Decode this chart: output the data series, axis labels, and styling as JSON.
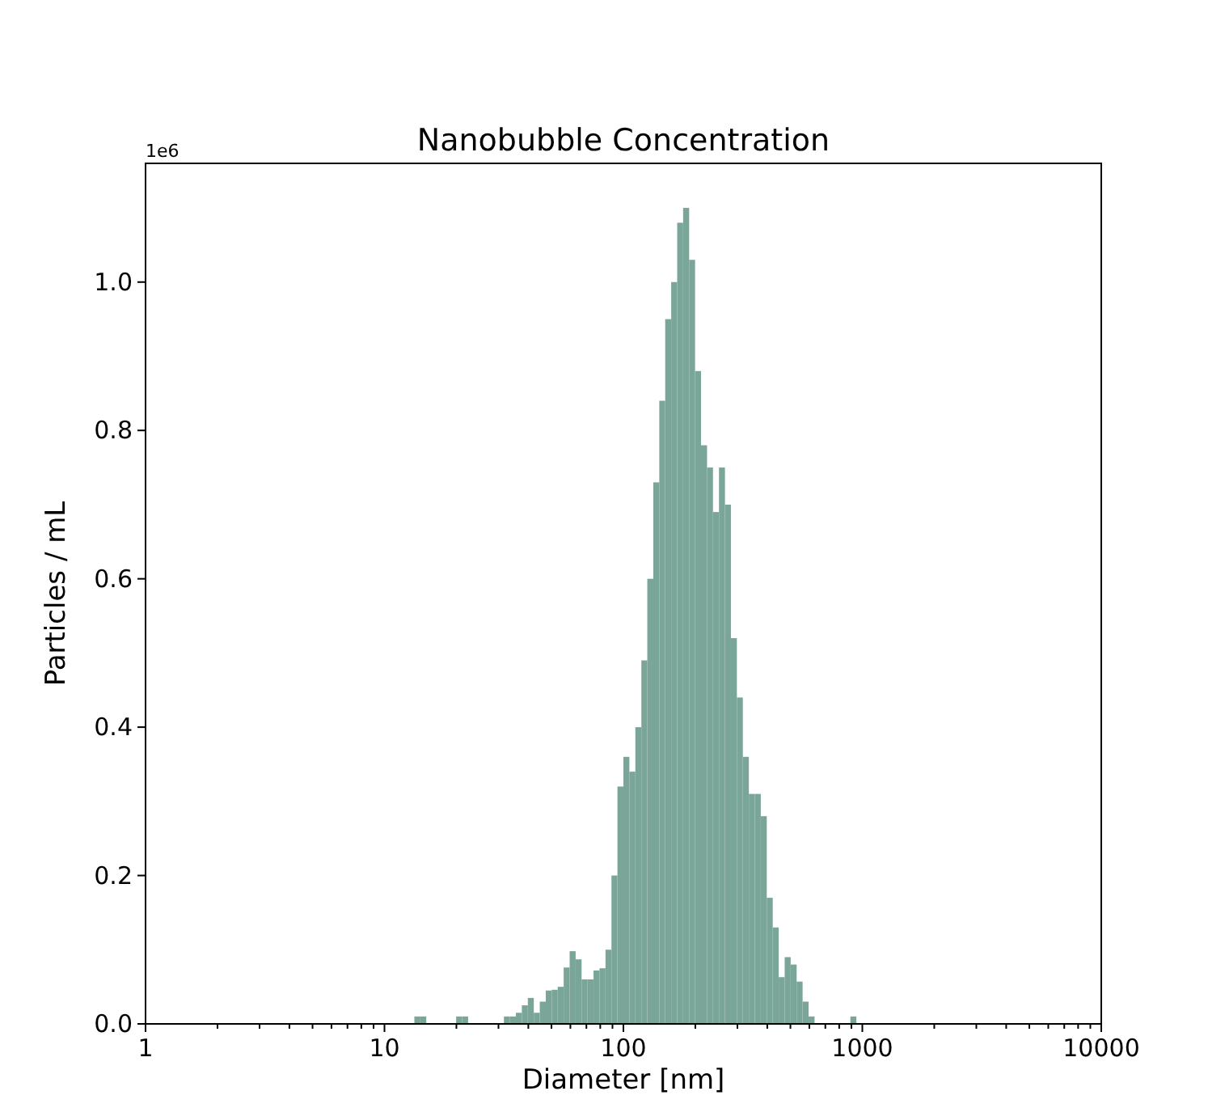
{
  "chart_data": {
    "type": "histogram",
    "title": "Nanobubble Concentration",
    "xlabel": "Diameter [nm]",
    "ylabel": "Particles / mL",
    "annotations": [
      "1e6"
    ],
    "color": "#7aa69a",
    "log": "x",
    "grid": false,
    "bins": [
      12.59,
      13.34,
      14.13,
      14.96,
      15.85,
      16.79,
      17.78,
      18.84,
      19.95,
      21.13,
      22.39,
      23.71,
      25.12,
      26.61,
      28.18,
      29.85,
      31.62,
      33.5,
      35.48,
      37.58,
      39.81,
      42.17,
      44.67,
      47.32,
      50.12,
      53.09,
      56.23,
      59.57,
      63.1,
      66.83,
      70.79,
      74.99,
      79.43,
      84.14,
      89.13,
      94.41,
      100,
      105.9,
      112.2,
      118.9,
      125.9,
      133.4,
      141.3,
      149.6,
      158.5,
      167.9,
      177.8,
      188.4,
      199.5,
      211.3,
      223.9,
      237.1,
      251.2,
      266.1,
      281.8,
      298.5,
      316.2,
      335,
      354.8,
      375.8,
      398.1,
      421.7,
      446.7,
      473.2,
      501.2,
      530.9,
      562.3,
      595.7,
      631,
      668.3,
      707.9,
      749.9,
      794.3,
      841.4,
      891.3,
      944.1,
      1000
    ],
    "values": [
      0,
      0.01,
      0.01,
      0,
      0,
      0,
      0,
      0,
      0.01,
      0.01,
      0,
      0,
      0,
      0,
      0,
      0,
      0.01,
      0.01,
      0.015,
      0.025,
      0.035,
      0.015,
      0.03,
      0.045,
      0.046,
      0.05,
      0.076,
      0.098,
      0.087,
      0.06,
      0.06,
      0.072,
      0.075,
      0.1,
      0.2,
      0.32,
      0.36,
      0.34,
      0.4,
      0.49,
      0.6,
      0.73,
      0.84,
      0.95,
      1.0,
      1.08,
      1.1,
      1.03,
      0.88,
      0.78,
      0.75,
      0.69,
      0.75,
      0.7,
      0.52,
      0.44,
      0.36,
      0.31,
      0.31,
      0.28,
      0.17,
      0.13,
      0.063,
      0.09,
      0.08,
      0.057,
      0.03,
      0.01,
      0,
      0,
      0,
      0,
      0,
      0,
      0.01,
      0
    ],
    "xlim": [
      1,
      10000
    ],
    "xticks": [
      1,
      10,
      100,
      1000,
      10000
    ],
    "ylim": [
      0,
      1.16
    ],
    "yticks": [
      {
        "value": 0,
        "label": "0.0"
      },
      0.2,
      0.4,
      0.6,
      0.8,
      {
        "value": 1,
        "label": "1.0"
      }
    ]
  }
}
